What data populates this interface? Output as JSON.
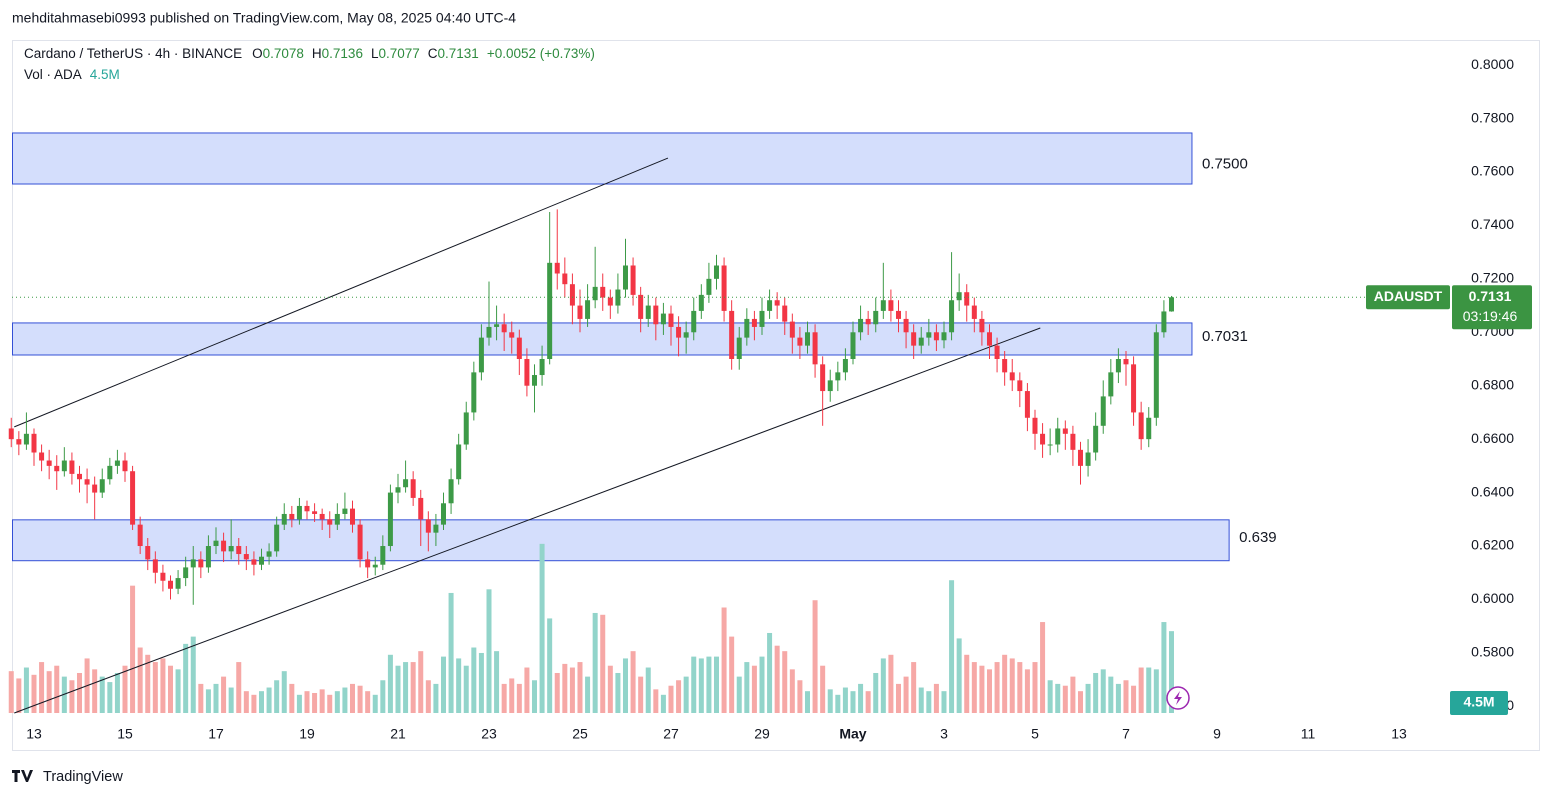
{
  "chart_data": {
    "type": "candlestick",
    "publisher": "mehditahmasebi0993 published on TradingView.com, May 08, 2025 04:40 UTC-4",
    "symbol": "Cardano / TetherUS · 4h · BINANCE",
    "ohlc_letters": [
      "O",
      "H",
      "L",
      "C"
    ],
    "change": "+0.0052 (+0.73%)",
    "volume_title": "Vol · ADA",
    "last_volume_label": "4.5M",
    "ticker": "ADAUSDT",
    "countdown": "03:19:46",
    "brand": "TradingView",
    "up_color": "#3d9a47",
    "down_color": "#f23645",
    "vol_up_color": "#92d4ca",
    "vol_down_color": "#f6a8a6",
    "xlim": [
      0,
      188
    ],
    "ylim": [
      0.5575,
      0.8094
    ],
    "vlim": [
      0,
      37
    ],
    "xticks": [
      {
        "value": 3,
        "label": "13"
      },
      {
        "value": 15,
        "label": "15"
      },
      {
        "value": 27,
        "label": "17"
      },
      {
        "value": 39,
        "label": "19"
      },
      {
        "value": 51,
        "label": "21"
      },
      {
        "value": 63,
        "label": "23"
      },
      {
        "value": 75,
        "label": "25"
      },
      {
        "value": 87,
        "label": "27"
      },
      {
        "value": 99,
        "label": "29"
      },
      {
        "value": 111,
        "label": "May"
      },
      {
        "value": 123,
        "label": "3"
      },
      {
        "value": 135,
        "label": "5"
      },
      {
        "value": 147,
        "label": "7"
      },
      {
        "value": 159,
        "label": "9"
      },
      {
        "value": 171,
        "label": "11"
      },
      {
        "value": 183,
        "label": "13"
      }
    ],
    "yticks": [
      {
        "value": 0.8,
        "label": "0.8000"
      },
      {
        "value": 0.78,
        "label": "0.7800"
      },
      {
        "value": 0.76,
        "label": "0.7600"
      },
      {
        "value": 0.74,
        "label": "0.7400"
      },
      {
        "value": 0.72,
        "label": "0.7200"
      },
      {
        "value": 0.7,
        "label": "0.7000"
      },
      {
        "value": 0.68,
        "label": "0.6800"
      },
      {
        "value": 0.66,
        "label": "0.6600"
      },
      {
        "value": 0.64,
        "label": "0.6400"
      },
      {
        "value": 0.62,
        "label": "0.6200"
      },
      {
        "value": 0.6,
        "label": "0.6000"
      },
      {
        "value": 0.58,
        "label": "0.5800"
      },
      {
        "value": 0.56,
        "label": "0.5600"
      }
    ],
    "zones": [
      {
        "label": "0.7500",
        "top": 0.7746,
        "bottom": 0.7555,
        "x_end": 155.7
      },
      {
        "label": "0.7031",
        "top": 0.7035,
        "bottom": 0.6915,
        "x_end": 155.7
      },
      {
        "label": "0.639",
        "top": 0.6298,
        "bottom": 0.6145,
        "x_end": 160.6
      }
    ],
    "trendlines": [
      {
        "x": [
          0.4,
          86.6
        ],
        "y": [
          0.6646,
          0.7652
        ]
      },
      {
        "x": [
          0.4,
          135.7
        ],
        "y": [
          0.5575,
          0.7016
        ]
      }
    ],
    "ohlc": [
      [
        0.664,
        0.668,
        0.657,
        0.66
      ],
      [
        0.66,
        0.663,
        0.654,
        0.658
      ],
      [
        0.658,
        0.67,
        0.656,
        0.662
      ],
      [
        0.662,
        0.664,
        0.65,
        0.655
      ],
      [
        0.655,
        0.658,
        0.648,
        0.652
      ],
      [
        0.652,
        0.656,
        0.645,
        0.65
      ],
      [
        0.65,
        0.654,
        0.641,
        0.648
      ],
      [
        0.648,
        0.657,
        0.646,
        0.652
      ],
      [
        0.652,
        0.655,
        0.643,
        0.647
      ],
      [
        0.647,
        0.65,
        0.64,
        0.645
      ],
      [
        0.645,
        0.649,
        0.636,
        0.643
      ],
      [
        0.643,
        0.646,
        0.63,
        0.64
      ],
      [
        0.64,
        0.649,
        0.638,
        0.645
      ],
      [
        0.645,
        0.653,
        0.643,
        0.65
      ],
      [
        0.65,
        0.656,
        0.647,
        0.652
      ],
      [
        0.652,
        0.655,
        0.644,
        0.648
      ],
      [
        0.648,
        0.65,
        0.626,
        0.628
      ],
      [
        0.628,
        0.631,
        0.617,
        0.62
      ],
      [
        0.62,
        0.623,
        0.611,
        0.615
      ],
      [
        0.615,
        0.618,
        0.606,
        0.61
      ],
      [
        0.61,
        0.613,
        0.603,
        0.607
      ],
      [
        0.607,
        0.609,
        0.6,
        0.604
      ],
      [
        0.604,
        0.611,
        0.602,
        0.608
      ],
      [
        0.608,
        0.616,
        0.605,
        0.612
      ],
      [
        0.612,
        0.62,
        0.598,
        0.615
      ],
      [
        0.615,
        0.618,
        0.608,
        0.612
      ],
      [
        0.612,
        0.624,
        0.61,
        0.62
      ],
      [
        0.62,
        0.627,
        0.617,
        0.622
      ],
      [
        0.622,
        0.625,
        0.614,
        0.618
      ],
      [
        0.618,
        0.63,
        0.615,
        0.62
      ],
      [
        0.62,
        0.623,
        0.613,
        0.617
      ],
      [
        0.617,
        0.62,
        0.611,
        0.615
      ],
      [
        0.615,
        0.618,
        0.609,
        0.613
      ],
      [
        0.613,
        0.619,
        0.611,
        0.616
      ],
      [
        0.616,
        0.621,
        0.613,
        0.618
      ],
      [
        0.618,
        0.631,
        0.616,
        0.628
      ],
      [
        0.628,
        0.636,
        0.626,
        0.632
      ],
      [
        0.632,
        0.635,
        0.627,
        0.63
      ],
      [
        0.63,
        0.638,
        0.628,
        0.635
      ],
      [
        0.635,
        0.637,
        0.63,
        0.633
      ],
      [
        0.633,
        0.636,
        0.629,
        0.632
      ],
      [
        0.632,
        0.634,
        0.626,
        0.63
      ],
      [
        0.63,
        0.633,
        0.623,
        0.628
      ],
      [
        0.628,
        0.636,
        0.626,
        0.632
      ],
      [
        0.632,
        0.64,
        0.63,
        0.634
      ],
      [
        0.634,
        0.637,
        0.625,
        0.628
      ],
      [
        0.628,
        0.63,
        0.612,
        0.615
      ],
      [
        0.615,
        0.618,
        0.608,
        0.612
      ],
      [
        0.612,
        0.616,
        0.609,
        0.613
      ],
      [
        0.613,
        0.624,
        0.611,
        0.62
      ],
      [
        0.62,
        0.643,
        0.618,
        0.64
      ],
      [
        0.64,
        0.647,
        0.636,
        0.642
      ],
      [
        0.642,
        0.652,
        0.64,
        0.645
      ],
      [
        0.645,
        0.648,
        0.635,
        0.638
      ],
      [
        0.638,
        0.641,
        0.62,
        0.63
      ],
      [
        0.63,
        0.633,
        0.618,
        0.625
      ],
      [
        0.625,
        0.632,
        0.62,
        0.628
      ],
      [
        0.628,
        0.64,
        0.626,
        0.636
      ],
      [
        0.636,
        0.649,
        0.632,
        0.645
      ],
      [
        0.645,
        0.662,
        0.643,
        0.658
      ],
      [
        0.658,
        0.674,
        0.656,
        0.67
      ],
      [
        0.67,
        0.689,
        0.667,
        0.685
      ],
      [
        0.685,
        0.703,
        0.682,
        0.698
      ],
      [
        0.698,
        0.719,
        0.695,
        0.702
      ],
      [
        0.702,
        0.71,
        0.697,
        0.703
      ],
      [
        0.703,
        0.707,
        0.693,
        0.7
      ],
      [
        0.7,
        0.704,
        0.692,
        0.698
      ],
      [
        0.698,
        0.701,
        0.684,
        0.69
      ],
      [
        0.69,
        0.694,
        0.676,
        0.68
      ],
      [
        0.68,
        0.688,
        0.67,
        0.684
      ],
      [
        0.684,
        0.695,
        0.68,
        0.69
      ],
      [
        0.69,
        0.745,
        0.688,
        0.726
      ],
      [
        0.726,
        0.746,
        0.716,
        0.722
      ],
      [
        0.722,
        0.728,
        0.713,
        0.718
      ],
      [
        0.718,
        0.722,
        0.703,
        0.71
      ],
      [
        0.71,
        0.716,
        0.7,
        0.705
      ],
      [
        0.705,
        0.718,
        0.702,
        0.712
      ],
      [
        0.712,
        0.732,
        0.709,
        0.717
      ],
      [
        0.717,
        0.722,
        0.708,
        0.713
      ],
      [
        0.713,
        0.716,
        0.705,
        0.71
      ],
      [
        0.71,
        0.722,
        0.707,
        0.716
      ],
      [
        0.716,
        0.735,
        0.713,
        0.725
      ],
      [
        0.725,
        0.728,
        0.71,
        0.714
      ],
      [
        0.714,
        0.717,
        0.7,
        0.705
      ],
      [
        0.705,
        0.714,
        0.702,
        0.71
      ],
      [
        0.71,
        0.713,
        0.697,
        0.703
      ],
      [
        0.703,
        0.711,
        0.699,
        0.707
      ],
      [
        0.707,
        0.71,
        0.695,
        0.702
      ],
      [
        0.702,
        0.706,
        0.691,
        0.698
      ],
      [
        0.698,
        0.704,
        0.692,
        0.7
      ],
      [
        0.7,
        0.713,
        0.697,
        0.708
      ],
      [
        0.708,
        0.718,
        0.705,
        0.714
      ],
      [
        0.714,
        0.726,
        0.711,
        0.72
      ],
      [
        0.72,
        0.729,
        0.716,
        0.725
      ],
      [
        0.725,
        0.728,
        0.704,
        0.708
      ],
      [
        0.708,
        0.712,
        0.686,
        0.69
      ],
      [
        0.69,
        0.702,
        0.686,
        0.698
      ],
      [
        0.698,
        0.709,
        0.695,
        0.705
      ],
      [
        0.705,
        0.708,
        0.697,
        0.702
      ],
      [
        0.702,
        0.713,
        0.699,
        0.708
      ],
      [
        0.708,
        0.716,
        0.705,
        0.712
      ],
      [
        0.712,
        0.715,
        0.705,
        0.71
      ],
      [
        0.71,
        0.713,
        0.699,
        0.704
      ],
      [
        0.704,
        0.707,
        0.692,
        0.698
      ],
      [
        0.698,
        0.702,
        0.69,
        0.695
      ],
      [
        0.695,
        0.704,
        0.692,
        0.7
      ],
      [
        0.7,
        0.703,
        0.683,
        0.688
      ],
      [
        0.688,
        0.691,
        0.665,
        0.678
      ],
      [
        0.678,
        0.686,
        0.674,
        0.682
      ],
      [
        0.682,
        0.689,
        0.678,
        0.685
      ],
      [
        0.685,
        0.694,
        0.682,
        0.69
      ],
      [
        0.69,
        0.704,
        0.688,
        0.7
      ],
      [
        0.7,
        0.71,
        0.697,
        0.705
      ],
      [
        0.705,
        0.708,
        0.699,
        0.703
      ],
      [
        0.703,
        0.713,
        0.7,
        0.708
      ],
      [
        0.708,
        0.726,
        0.705,
        0.712
      ],
      [
        0.712,
        0.716,
        0.704,
        0.708
      ],
      [
        0.708,
        0.712,
        0.7,
        0.705
      ],
      [
        0.705,
        0.708,
        0.694,
        0.7
      ],
      [
        0.7,
        0.703,
        0.69,
        0.695
      ],
      [
        0.695,
        0.702,
        0.692,
        0.698
      ],
      [
        0.698,
        0.705,
        0.695,
        0.7
      ],
      [
        0.7,
        0.703,
        0.693,
        0.697
      ],
      [
        0.697,
        0.704,
        0.694,
        0.7
      ],
      [
        0.7,
        0.73,
        0.697,
        0.712
      ],
      [
        0.712,
        0.722,
        0.708,
        0.715
      ],
      [
        0.715,
        0.718,
        0.704,
        0.71
      ],
      [
        0.71,
        0.713,
        0.7,
        0.705
      ],
      [
        0.705,
        0.708,
        0.695,
        0.7
      ],
      [
        0.7,
        0.703,
        0.69,
        0.695
      ],
      [
        0.695,
        0.698,
        0.685,
        0.69
      ],
      [
        0.69,
        0.693,
        0.68,
        0.685
      ],
      [
        0.685,
        0.69,
        0.678,
        0.682
      ],
      [
        0.682,
        0.685,
        0.672,
        0.678
      ],
      [
        0.678,
        0.681,
        0.663,
        0.668
      ],
      [
        0.668,
        0.671,
        0.656,
        0.662
      ],
      [
        0.662,
        0.666,
        0.653,
        0.658
      ],
      [
        0.658,
        0.664,
        0.654,
        0.658
      ],
      [
        0.658,
        0.668,
        0.655,
        0.664
      ],
      [
        0.664,
        0.667,
        0.656,
        0.662
      ],
      [
        0.662,
        0.665,
        0.65,
        0.656
      ],
      [
        0.656,
        0.659,
        0.643,
        0.65
      ],
      [
        0.65,
        0.66,
        0.646,
        0.655
      ],
      [
        0.655,
        0.67,
        0.652,
        0.665
      ],
      [
        0.665,
        0.682,
        0.662,
        0.676
      ],
      [
        0.676,
        0.69,
        0.673,
        0.685
      ],
      [
        0.685,
        0.694,
        0.681,
        0.69
      ],
      [
        0.69,
        0.693,
        0.68,
        0.688
      ],
      [
        0.688,
        0.691,
        0.665,
        0.67
      ],
      [
        0.67,
        0.674,
        0.656,
        0.66
      ],
      [
        0.66,
        0.672,
        0.657,
        0.668
      ],
      [
        0.668,
        0.703,
        0.665,
        0.7
      ],
      [
        0.7,
        0.712,
        0.698,
        0.7078
      ],
      [
        0.7078,
        0.7136,
        0.7077,
        0.7131
      ]
    ],
    "volume": [
      2.3,
      1.9,
      2.5,
      2.1,
      2.8,
      2.3,
      2.6,
      2.0,
      1.8,
      2.2,
      3.0,
      2.4,
      2.0,
      1.7,
      2.2,
      2.6,
      7.0,
      3.6,
      3.2,
      2.8,
      3.0,
      2.6,
      2.4,
      3.8,
      4.2,
      1.6,
      1.3,
      1.6,
      2.0,
      1.4,
      2.8,
      1.2,
      1.0,
      1.2,
      1.4,
      1.8,
      2.3,
      1.6,
      1.0,
      1.2,
      1.1,
      1.3,
      1.0,
      1.2,
      1.4,
      1.6,
      1.5,
      1.2,
      1.0,
      1.8,
      3.2,
      2.6,
      2.8,
      2.8,
      3.4,
      1.8,
      1.6,
      3.1,
      6.6,
      3.0,
      2.6,
      3.6,
      3.3,
      6.8,
      3.4,
      1.6,
      1.9,
      1.6,
      2.5,
      1.8,
      9.3,
      5.2,
      2.2,
      2.7,
      2.5,
      2.8,
      2.0,
      5.5,
      5.4,
      2.6,
      2.2,
      3.0,
      3.4,
      2.0,
      2.5,
      1.3,
      1.0,
      1.5,
      1.8,
      2.0,
      3.1,
      3.0,
      3.1,
      3.1,
      5.8,
      4.2,
      2.0,
      2.8,
      2.6,
      3.1,
      4.4,
      3.7,
      3.4,
      2.4,
      1.8,
      1.2,
      6.2,
      2.6,
      1.3,
      1.0,
      1.4,
      1.2,
      1.6,
      1.2,
      2.2,
      3.0,
      3.2,
      1.6,
      2.0,
      2.8,
      1.4,
      1.2,
      1.6,
      1.2,
      7.3,
      4.1,
      3.2,
      2.8,
      2.6,
      2.4,
      2.8,
      3.2,
      3.0,
      2.8,
      2.4,
      2.8,
      5.0,
      1.8,
      1.6,
      1.5,
      2.0,
      1.2,
      1.6,
      2.2,
      2.4,
      2.0,
      1.6,
      1.8,
      1.5,
      2.5,
      2.5,
      2.4,
      5.0,
      4.5
    ]
  }
}
